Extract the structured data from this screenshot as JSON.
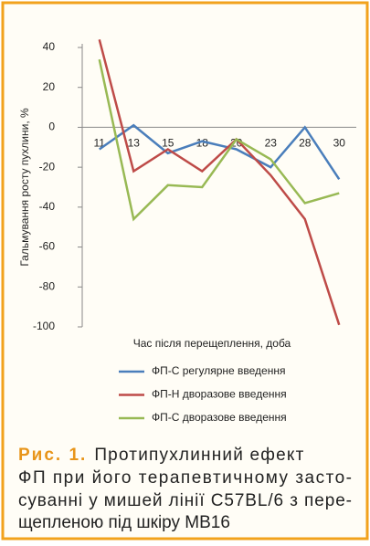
{
  "chart_data": {
    "type": "line",
    "y_axis_label": "Гальмування росту пухлини, %",
    "x_axis_label": "Час після перещеплення, доба",
    "categories": [
      "11",
      "13",
      "15",
      "18",
      "20",
      "23",
      "28",
      "30"
    ],
    "series": [
      {
        "name": "ФП-С регулярне введення",
        "color": "#4a7ebb",
        "values": [
          -11,
          1,
          -13,
          -7,
          -11,
          -20,
          0,
          -26
        ]
      },
      {
        "name": "ФП-Н дворазове введення",
        "color": "#be4b48",
        "values": [
          44,
          -22,
          -11,
          -22,
          -6,
          -24,
          -46,
          -99
        ]
      },
      {
        "name": "ФП-С дворазове введення",
        "color": "#98b954",
        "values": [
          34,
          -46,
          -29,
          -30,
          -6,
          -16,
          -38,
          -33
        ]
      }
    ],
    "ylim": [
      -100,
      40
    ],
    "yticks": [
      40,
      20,
      0,
      -20,
      -40,
      -60,
      -80,
      -100
    ],
    "legend": "bottom",
    "grid": false
  },
  "caption": {
    "label": "Рис. 1.",
    "lines": [
      "Протипухлинний ефект",
      "ФП при його терапевтичному засто-",
      "суванні у мишей лінії C57BL/6 з пере-",
      "щепленою під шкіру MB16"
    ]
  }
}
